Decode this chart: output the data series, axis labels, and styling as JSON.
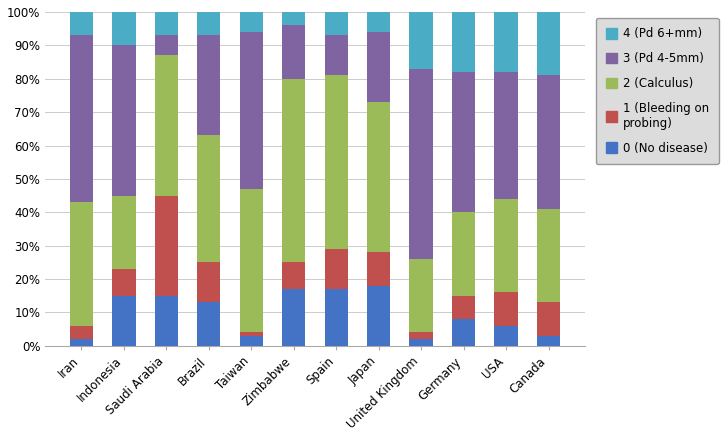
{
  "countries": [
    "Iran",
    "Indonesia",
    "Saudi Arabia",
    "Brazil",
    "Taiwan",
    "Zimbabwe",
    "Spain",
    "Japan",
    "United Kingdom",
    "Germany",
    "USA",
    "Canada"
  ],
  "series": {
    "0 (No disease)": [
      2,
      15,
      15,
      13,
      3,
      17,
      17,
      18,
      2,
      8,
      6,
      3
    ],
    "1 (Bleeding on probing)": [
      4,
      8,
      30,
      12,
      1,
      8,
      12,
      10,
      2,
      7,
      10,
      10
    ],
    "2 (Calculus)": [
      37,
      22,
      42,
      38,
      43,
      55,
      52,
      45,
      22,
      25,
      28,
      28
    ],
    "3 (Pd 4-5mm)": [
      50,
      45,
      6,
      30,
      47,
      16,
      12,
      21,
      57,
      42,
      38,
      40
    ],
    "4 (Pd 6+mm)": [
      7,
      10,
      7,
      7,
      6,
      4,
      7,
      6,
      17,
      18,
      18,
      19
    ]
  },
  "colors": {
    "0 (No disease)": "#4472C4",
    "1 (Bleeding on probing)": "#C0504D",
    "2 (Calculus)": "#9BBB59",
    "3 (Pd 4-5mm)": "#8064A2",
    "4 (Pd 6+mm)": "#4BACC6"
  },
  "legend_labels": [
    "4 (Pd 6+mm)",
    "3 (Pd 4-5mm)",
    "2 (Calculus)",
    "1 (Bleeding on\nprobing)",
    "0 (No disease)"
  ],
  "legend_colors": [
    "#4BACC6",
    "#8064A2",
    "#9BBB59",
    "#C0504D",
    "#4472C4"
  ],
  "background_color": "#FFFFFF",
  "plot_bg": "#FFFFFF",
  "bar_width": 0.55
}
